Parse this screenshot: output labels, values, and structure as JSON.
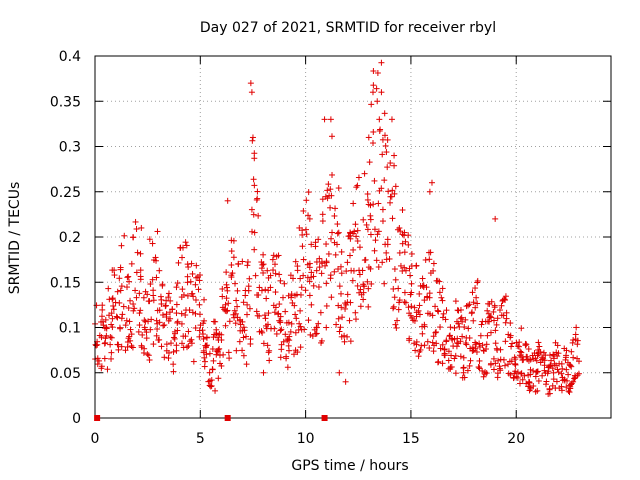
{
  "chart_data": {
    "type": "scatter",
    "title": "Day 027 of 2021, SRMTID for receiver rbyl",
    "xlabel": "GPS time / hours",
    "ylabel": "SRMTID / TECUs",
    "xlim": [
      0,
      24.5
    ],
    "ylim": [
      0,
      0.4
    ],
    "xticks": [
      0,
      5,
      10,
      15,
      20
    ],
    "xtick_labels": [
      "0",
      "5",
      "10",
      "15",
      "20"
    ],
    "yticks": [
      0,
      0.05,
      0.1,
      0.15,
      0.2,
      0.25,
      0.3,
      0.35,
      0.4
    ],
    "ytick_labels": [
      "0",
      "0.05",
      "0.1",
      "0.15",
      "0.2",
      "0.25",
      "0.3",
      "0.35",
      "0.4"
    ],
    "grid": true,
    "marker": "+",
    "color": "#e00000",
    "series": [
      {
        "name": "SRMTID",
        "x": [
          0.0,
          0.2,
          0.4,
          0.6,
          0.8,
          1.0,
          1.2,
          1.4,
          1.6,
          1.8,
          2.0,
          2.2,
          2.4,
          2.6,
          2.8,
          3.0,
          3.2,
          3.4,
          3.6,
          3.8,
          4.0,
          4.2,
          4.4,
          4.6,
          4.8,
          5.0,
          5.2,
          5.4,
          5.6,
          5.8,
          6.0,
          6.2,
          6.4,
          6.6,
          6.8,
          7.0,
          7.2,
          7.4,
          7.6,
          7.8,
          8.0,
          8.2,
          8.4,
          8.6,
          8.8,
          9.0,
          9.2,
          9.4,
          9.6,
          9.8,
          10.0,
          10.2,
          10.4,
          10.6,
          10.8,
          11.0,
          11.2,
          11.4,
          11.6,
          11.8,
          12.0,
          12.2,
          12.4,
          12.6,
          12.8,
          13.0,
          13.2,
          13.4,
          13.6,
          13.8,
          14.0,
          14.2,
          14.4,
          14.6,
          14.8,
          15.0,
          15.2,
          15.4,
          15.6,
          15.8,
          16.0,
          16.2,
          16.4,
          16.6,
          16.8,
          17.0,
          17.2,
          17.4,
          17.6,
          17.8,
          18.0,
          18.2,
          18.4,
          18.6,
          18.8,
          19.0,
          19.2,
          19.4,
          19.6,
          19.8,
          20.0,
          20.2,
          20.4,
          20.6,
          20.8,
          21.0,
          21.2,
          21.4,
          21.6,
          21.8,
          22.0,
          22.2,
          22.4,
          22.6,
          22.8
        ],
        "y": [
          0.1,
          0.09,
          0.08,
          0.1,
          0.12,
          0.13,
          0.14,
          0.11,
          0.12,
          0.15,
          0.13,
          0.12,
          0.1,
          0.14,
          0.16,
          0.12,
          0.11,
          0.1,
          0.09,
          0.12,
          0.13,
          0.14,
          0.12,
          0.11,
          0.15,
          0.1,
          0.07,
          0.06,
          0.08,
          0.07,
          0.1,
          0.12,
          0.14,
          0.11,
          0.12,
          0.1,
          0.13,
          0.22,
          0.18,
          0.14,
          0.12,
          0.11,
          0.13,
          0.14,
          0.12,
          0.1,
          0.11,
          0.12,
          0.13,
          0.16,
          0.18,
          0.15,
          0.14,
          0.13,
          0.17,
          0.2,
          0.22,
          0.18,
          0.14,
          0.12,
          0.15,
          0.17,
          0.19,
          0.16,
          0.18,
          0.24,
          0.27,
          0.3,
          0.25,
          0.22,
          0.2,
          0.18,
          0.16,
          0.15,
          0.14,
          0.13,
          0.12,
          0.11,
          0.13,
          0.14,
          0.12,
          0.11,
          0.1,
          0.09,
          0.08,
          0.09,
          0.1,
          0.08,
          0.09,
          0.1,
          0.11,
          0.09,
          0.08,
          0.1,
          0.09,
          0.08,
          0.09,
          0.1,
          0.08,
          0.07,
          0.06,
          0.07,
          0.06,
          0.05,
          0.05,
          0.06,
          0.05,
          0.04,
          0.05,
          0.06,
          0.05,
          0.06,
          0.05,
          0.06,
          0.07
        ]
      }
    ],
    "extra_points": {
      "x": [
        7.4,
        7.45,
        7.5,
        13.2,
        13.4,
        13.5,
        13.6,
        10.9,
        11.2,
        14.1,
        14.2,
        12.8,
        13.0,
        6.3,
        16.0,
        19.0,
        15.9,
        2.2,
        4.4,
        11.6,
        11.9,
        9.7,
        10.2,
        8.0,
        5.7,
        17.5,
        20.6,
        21.0,
        22.7
      ],
      "y": [
        0.37,
        0.36,
        0.31,
        0.36,
        0.35,
        0.33,
        0.36,
        0.33,
        0.33,
        0.33,
        0.29,
        0.27,
        0.31,
        0.24,
        0.26,
        0.22,
        0.25,
        0.21,
        0.17,
        0.05,
        0.04,
        0.21,
        0.22,
        0.05,
        0.03,
        0.05,
        0.04,
        0.03,
        0.04
      ]
    },
    "gap_markers_x": [
      0.1,
      6.3,
      10.9
    ]
  }
}
